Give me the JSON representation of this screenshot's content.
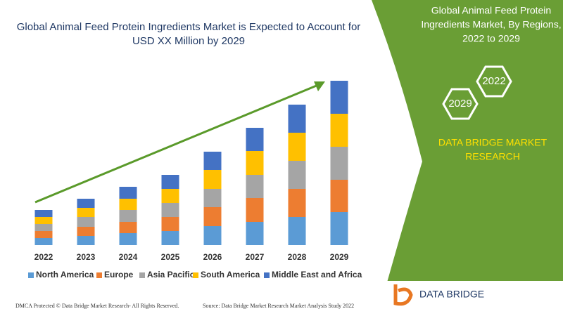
{
  "chart_data": {
    "type": "bar",
    "stacked": true,
    "title": [
      "Global Animal Feed Protein Ingredients Market is Expected to Account for",
      "USD XX Million by 2029"
    ],
    "categories": [
      "2022",
      "2023",
      "2024",
      "2025",
      "2026",
      "2027",
      "2028",
      "2029"
    ],
    "series": [
      {
        "name": "North America",
        "color": "#5b9bd5",
        "values": [
          10,
          13,
          17,
          20,
          27,
          33,
          40,
          47
        ]
      },
      {
        "name": "Europe",
        "color": "#ed7d31",
        "values": [
          10,
          13,
          16,
          20,
          27,
          34,
          40,
          46
        ]
      },
      {
        "name": "Asia Pacific",
        "color": "#a5a5a5",
        "values": [
          10,
          14,
          17,
          20,
          26,
          33,
          40,
          47
        ]
      },
      {
        "name": "South America",
        "color": "#ffc000",
        "values": [
          10,
          13,
          16,
          20,
          27,
          34,
          40,
          47
        ]
      },
      {
        "name": "Middle East and Africa",
        "color": "#4472c4",
        "values": [
          10,
          13,
          17,
          20,
          26,
          33,
          40,
          47
        ]
      }
    ]
  },
  "panel": {
    "title": [
      "Global Animal Feed Protein",
      "Ingredients Market, By Regions,",
      "2022 to 2029"
    ],
    "years": [
      "2029",
      "2022"
    ],
    "brand": [
      "DATA BRIDGE MARKET",
      "RESEARCH"
    ]
  },
  "logo": {
    "name": "DATA BRIDGE"
  },
  "footer": {
    "dmca": "DMCA Protected © Data Bridge Market Research- All Rights Reserved.",
    "source": "Source: Data Bridge Market Research Market Analysis Study 2022"
  }
}
